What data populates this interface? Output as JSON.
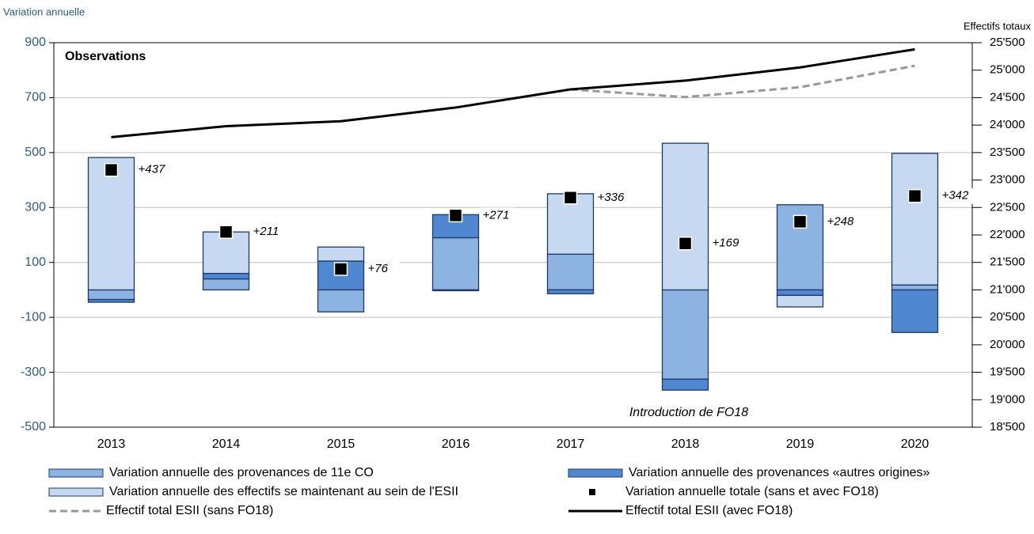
{
  "chart_data": {
    "type": "bar",
    "y_label": "Variation annuelle",
    "y2_label": "Effectifs totaux",
    "annotations": [
      "Observations",
      "Introduction de FO18"
    ],
    "categories": [
      "2013",
      "2014",
      "2015",
      "2016",
      "2017",
      "2018",
      "2019",
      "2020"
    ],
    "ylim": [
      -500,
      900
    ],
    "yticks": [
      -500,
      -300,
      -100,
      100,
      300,
      500,
      700,
      900
    ],
    "y2lim": [
      18500,
      25500
    ],
    "y2ticks": [
      {
        "value": 18500,
        "label": "18'500"
      },
      {
        "value": 19000,
        "label": "19'000"
      },
      {
        "value": 19500,
        "label": "19'500"
      },
      {
        "value": 20000,
        "label": "20'000"
      },
      {
        "value": 20500,
        "label": "20'500"
      },
      {
        "value": 21000,
        "label": "21'000"
      },
      {
        "value": 21500,
        "label": "21'500"
      },
      {
        "value": 22000,
        "label": "22'000"
      },
      {
        "value": 22500,
        "label": "22'500"
      },
      {
        "value": 23000,
        "label": "23'000"
      },
      {
        "value": 23500,
        "label": "23'500"
      },
      {
        "value": 24000,
        "label": "24'000"
      },
      {
        "value": 24500,
        "label": "24'500"
      },
      {
        "value": 25000,
        "label": "25'000"
      },
      {
        "value": 25500,
        "label": "25'500"
      }
    ],
    "grid": true,
    "series": [
      {
        "name": "Variation annuelle des provenances de 11e CO",
        "color": "#8db3e2",
        "values": [
          -35,
          40,
          -80,
          190,
          130,
          -325,
          310,
          18
        ]
      },
      {
        "name": "Variation annuelle des provenances «autres origines»",
        "color": "#4f88d0",
        "values": [
          -10,
          20,
          105,
          84,
          -14,
          -40,
          -20,
          -155
        ]
      },
      {
        "name": "Variation annuelle des effectifs se maintenant au sein de l'ESII",
        "color": "#c6d9f1",
        "values": [
          482,
          151,
          51,
          -3,
          220,
          534,
          -42,
          479
        ]
      }
    ],
    "totals": {
      "name": "Variation annuelle totale (sans et avec FO18)",
      "color": "#000000",
      "values": [
        437,
        211,
        76,
        271,
        336,
        169,
        248,
        342
      ],
      "value_labels": [
        "+437",
        "+211",
        "+76",
        "+271",
        "+336",
        "+169",
        "+248",
        "+342"
      ]
    },
    "lines": [
      {
        "name": "Effectif total ESII (sans FO18)",
        "color": "#999999",
        "dashed": true,
        "axis": "y2",
        "values": [
          null,
          null,
          null,
          null,
          24650,
          24510,
          24690,
          25080
        ]
      },
      {
        "name": "Effectif total ESII (avec FO18)",
        "color": "#000000",
        "dashed": false,
        "axis": "y2",
        "values": [
          23780,
          23980,
          24070,
          24320,
          24650,
          24810,
          25050,
          25380
        ]
      }
    ]
  }
}
